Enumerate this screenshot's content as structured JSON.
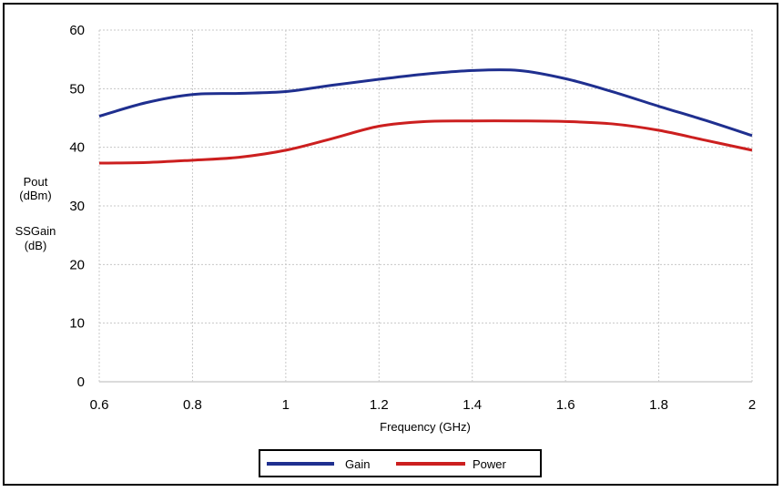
{
  "chart_data": {
    "type": "line",
    "xlabel": "Frequency (GHz)",
    "ylabel_lines": [
      "Pout",
      "(dBm)",
      "SSGain",
      "(dB)"
    ],
    "xlim": [
      0.6,
      2.0
    ],
    "ylim": [
      0,
      60
    ],
    "xticks": [
      0.6,
      0.8,
      1.0,
      1.2,
      1.4,
      1.6,
      1.8,
      2.0
    ],
    "xtick_labels": [
      "0.6",
      "0.8",
      "1",
      "1.2",
      "1.4",
      "1.6",
      "1.8",
      "2"
    ],
    "yticks": [
      0,
      10,
      20,
      30,
      40,
      50,
      60
    ],
    "ytick_labels": [
      "0",
      "10",
      "20",
      "30",
      "40",
      "50",
      "60"
    ],
    "grid": true,
    "legend_position": "bottom-center",
    "series": [
      {
        "name": "Gain",
        "color": "#1f2f8f",
        "x": [
          0.6,
          0.7,
          0.8,
          0.9,
          1.0,
          1.1,
          1.2,
          1.3,
          1.4,
          1.5,
          1.6,
          1.7,
          1.8,
          1.9,
          2.0
        ],
        "y": [
          45.3,
          47.6,
          49.0,
          49.2,
          49.5,
          50.6,
          51.6,
          52.5,
          53.1,
          53.1,
          51.7,
          49.5,
          47.0,
          44.6,
          42.0
        ]
      },
      {
        "name": "Power",
        "color": "#cc1f1f",
        "x": [
          0.6,
          0.7,
          0.8,
          0.9,
          1.0,
          1.1,
          1.2,
          1.3,
          1.4,
          1.5,
          1.6,
          1.7,
          1.8,
          1.9,
          2.0
        ],
        "y": [
          37.3,
          37.4,
          37.8,
          38.3,
          39.5,
          41.5,
          43.6,
          44.4,
          44.5,
          44.5,
          44.4,
          44.0,
          42.9,
          41.2,
          39.5
        ]
      }
    ]
  }
}
